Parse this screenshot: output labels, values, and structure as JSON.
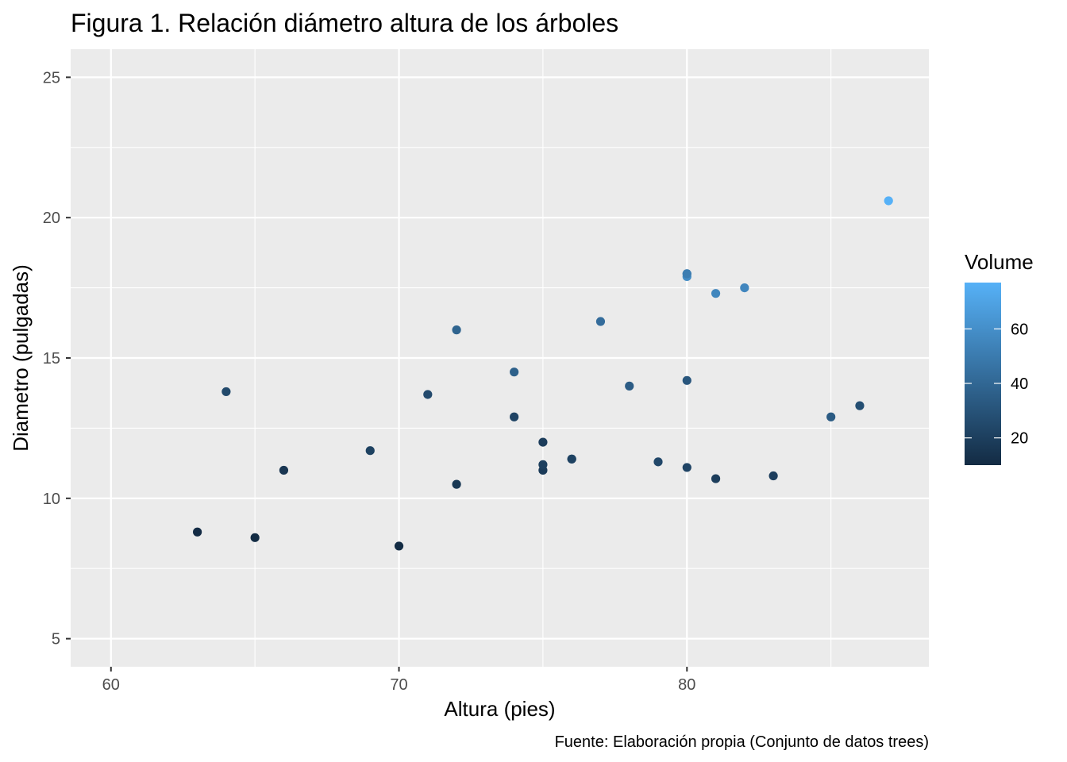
{
  "chart_data": {
    "type": "scatter",
    "title": "Figura 1. Relación diámetro altura de los árboles",
    "xlabel": "Altura (pies)",
    "ylabel": "Diametro (pulgadas)",
    "caption": "Fuente: Elaboración propia (Conjunto de datos trees)",
    "xlim": [
      58.6,
      88.4
    ],
    "ylim": [
      4.0,
      26.0
    ],
    "x_ticks": [
      60,
      70,
      80
    ],
    "y_ticks": [
      5,
      10,
      15,
      20,
      25
    ],
    "grid": true,
    "legend": {
      "title": "Volume",
      "position": "right",
      "range": [
        10,
        77
      ],
      "ticks": [
        20,
        40,
        60
      ],
      "color_low": "#132B43",
      "color_high": "#56B1F7"
    },
    "points": [
      {
        "x": 70,
        "y": 8.3,
        "volume": 10.3
      },
      {
        "x": 65,
        "y": 8.6,
        "volume": 10.3
      },
      {
        "x": 63,
        "y": 8.8,
        "volume": 10.2
      },
      {
        "x": 72,
        "y": 10.5,
        "volume": 16.4
      },
      {
        "x": 81,
        "y": 10.7,
        "volume": 18.8
      },
      {
        "x": 83,
        "y": 10.8,
        "volume": 19.7
      },
      {
        "x": 66,
        "y": 11.0,
        "volume": 15.6
      },
      {
        "x": 75,
        "y": 11.0,
        "volume": 18.2
      },
      {
        "x": 80,
        "y": 11.1,
        "volume": 22.6
      },
      {
        "x": 75,
        "y": 11.2,
        "volume": 19.9
      },
      {
        "x": 79,
        "y": 11.3,
        "volume": 24.2
      },
      {
        "x": 76,
        "y": 11.4,
        "volume": 21.0
      },
      {
        "x": 76,
        "y": 11.4,
        "volume": 21.4
      },
      {
        "x": 69,
        "y": 11.7,
        "volume": 21.3
      },
      {
        "x": 75,
        "y": 12.0,
        "volume": 19.1
      },
      {
        "x": 74,
        "y": 12.9,
        "volume": 22.2
      },
      {
        "x": 85,
        "y": 12.9,
        "volume": 33.8
      },
      {
        "x": 86,
        "y": 13.3,
        "volume": 27.4
      },
      {
        "x": 71,
        "y": 13.7,
        "volume": 25.7
      },
      {
        "x": 64,
        "y": 13.8,
        "volume": 24.9
      },
      {
        "x": 78,
        "y": 14.0,
        "volume": 34.5
      },
      {
        "x": 80,
        "y": 14.2,
        "volume": 31.7
      },
      {
        "x": 74,
        "y": 14.5,
        "volume": 36.3
      },
      {
        "x": 72,
        "y": 16.0,
        "volume": 38.3
      },
      {
        "x": 77,
        "y": 16.3,
        "volume": 42.6
      },
      {
        "x": 81,
        "y": 17.3,
        "volume": 55.4
      },
      {
        "x": 82,
        "y": 17.5,
        "volume": 55.7
      },
      {
        "x": 80,
        "y": 17.9,
        "volume": 58.3
      },
      {
        "x": 80,
        "y": 18.0,
        "volume": 51.5
      },
      {
        "x": 80,
        "y": 18.0,
        "volume": 51.0
      },
      {
        "x": 87,
        "y": 20.6,
        "volume": 77.0
      }
    ]
  }
}
